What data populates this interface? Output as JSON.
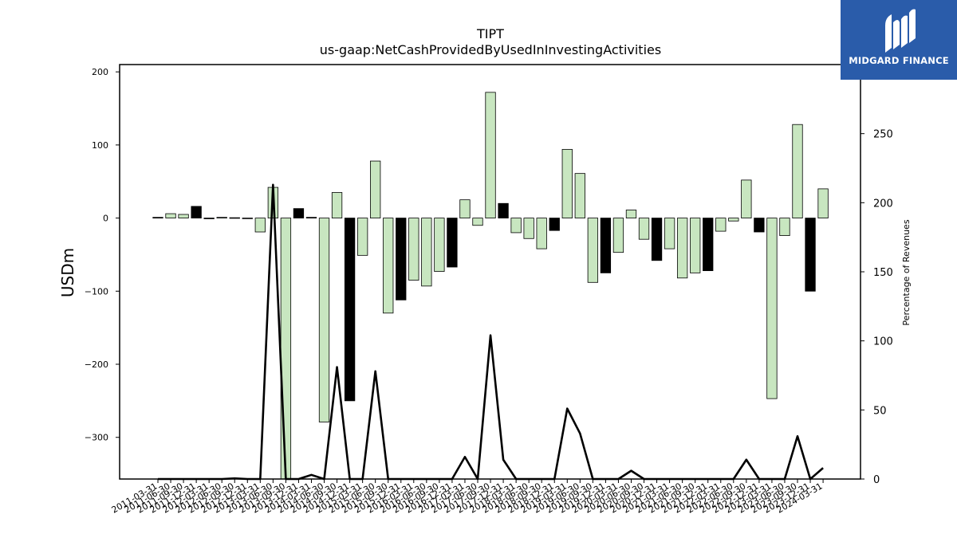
{
  "logo": {
    "text": "MIDGARD FINANCE",
    "color": "#2a5caa"
  },
  "chart_data": {
    "type": "bar",
    "title": "TIPT",
    "subtitle": "us-gaap:NetCashProvidedByUsedInInvestingActivities",
    "ylabel": "USDm",
    "y2label": "Percentage of Revenues",
    "ylim": [
      -357,
      210
    ],
    "y2lim": [
      0,
      300
    ],
    "yticks": [
      200,
      100,
      0,
      -100,
      -200,
      -300
    ],
    "y2ticks": [
      300,
      250,
      200,
      150,
      100,
      50,
      0
    ],
    "colors": {
      "quarterly": "#c8e6c0",
      "annual": "#000000",
      "line": "#000000"
    },
    "categories": [
      "2011-03-31",
      "2011-06-30",
      "2011-09-30",
      "2011-12-31",
      "2012-03-31",
      "2012-06-30",
      "2012-09-30",
      "2012-12-31",
      "2013-03-31",
      "2013-06-30",
      "2013-09-30",
      "2013-12-31",
      "2014-03-31",
      "2014-06-30",
      "2014-09-30",
      "2014-12-31",
      "2015-03-31",
      "2015-06-30",
      "2015-09-30",
      "2015-12-31",
      "2016-03-31",
      "2016-06-30",
      "2016-09-30",
      "2016-12-31",
      "2017-03-31",
      "2017-06-30",
      "2017-09-30",
      "2017-12-31",
      "2018-03-31",
      "2018-06-30",
      "2018-09-30",
      "2018-12-31",
      "2019-03-31",
      "2019-06-30",
      "2019-09-30",
      "2019-12-31",
      "2020-03-31",
      "2020-06-30",
      "2020-09-30",
      "2020-12-31",
      "2021-03-31",
      "2021-06-30",
      "2021-09-30",
      "2021-12-31",
      "2022-03-31",
      "2022-06-30",
      "2022-09-30",
      "2022-12-31",
      "2023-03-31",
      "2023-06-30",
      "2023-09-30",
      "2023-12-31",
      "2024-03-31"
    ],
    "series": [
      {
        "values": [
          1,
          6,
          5,
          16,
          -1,
          1,
          0.5,
          0,
          -19,
          42,
          -357,
          13,
          1,
          -279,
          35,
          -250,
          -51,
          78,
          -130,
          -112,
          -85,
          -93,
          -73,
          -67,
          25,
          -10,
          172,
          20,
          -20,
          -28,
          -42,
          -17,
          94,
          61,
          -88,
          -75,
          -47,
          11,
          -29,
          -58,
          -42,
          -82,
          -75,
          -72,
          -18,
          -4,
          52,
          -19,
          -247,
          -24,
          128,
          -100,
          40
        ],
        "annual": [
          true,
          false,
          false,
          true,
          true,
          false,
          false,
          false,
          false,
          false,
          false,
          true,
          true,
          false,
          false,
          true,
          false,
          false,
          false,
          true,
          false,
          false,
          false,
          true,
          false,
          false,
          false,
          true,
          false,
          false,
          false,
          true,
          false,
          false,
          false,
          true,
          false,
          false,
          false,
          true,
          false,
          false,
          false,
          true,
          false,
          false,
          false,
          true,
          false,
          false,
          false,
          true,
          false
        ]
      },
      {
        "values": [
          0,
          0,
          0,
          0,
          0,
          0,
          0.5,
          0,
          0,
          213,
          0,
          0,
          3,
          0,
          81,
          0,
          0,
          78,
          0,
          0,
          0,
          0,
          0,
          0,
          16,
          0,
          104,
          14,
          0,
          0,
          0,
          0,
          51,
          33,
          0,
          0,
          0,
          6,
          0,
          0,
          0,
          0,
          0,
          0,
          0,
          0,
          14,
          0,
          0,
          0,
          31,
          0,
          8
        ]
      }
    ]
  }
}
